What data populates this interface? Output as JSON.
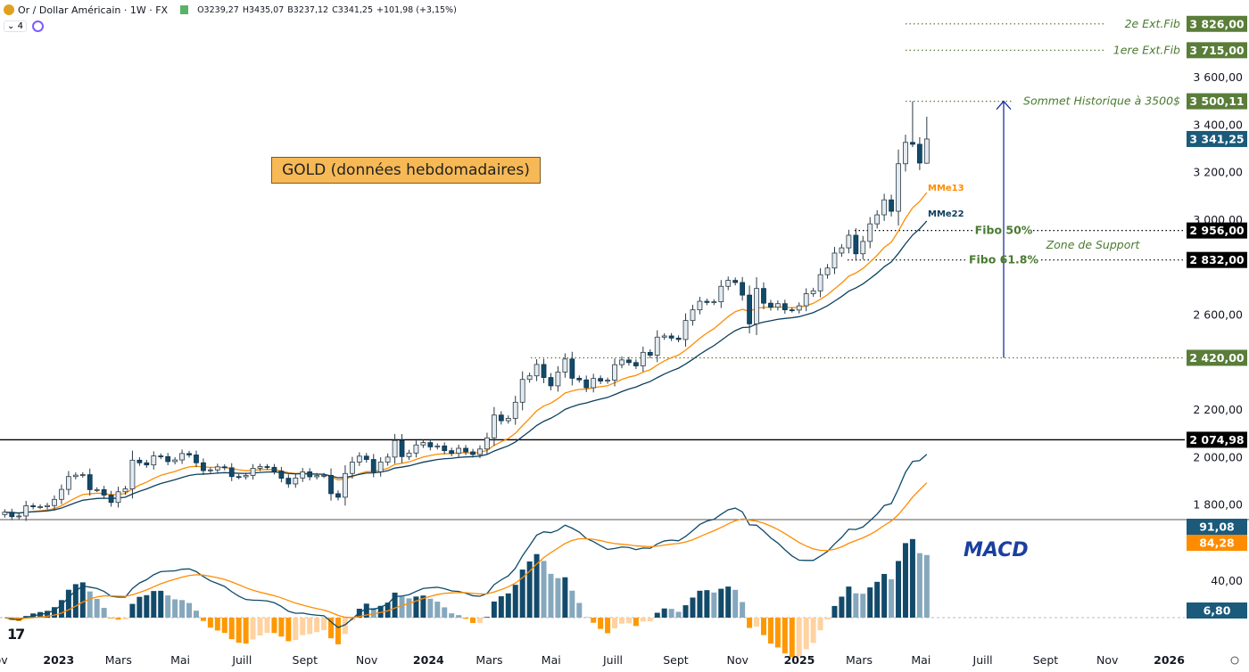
{
  "header": {
    "symbol": "Or / Dollar Américain · 1W · FX",
    "open": "O3239,27",
    "high": "H3435,07",
    "low": "B3237,12",
    "close": "C3341,25",
    "change": "+101,98 (+3,15%)",
    "collapse_count": "4"
  },
  "title_box": "GOLD (données hebdomadaires)",
  "macd_label": "MACD",
  "chart_data": {
    "type": "candlestick",
    "interval": "1W",
    "first_week": "2022-11-07",
    "close": [
      1770,
      1751,
      1754,
      1797,
      1793,
      1793,
      1798,
      1824,
      1866,
      1920,
      1926,
      1928,
      1865,
      1865,
      1842,
      1811,
      1856,
      1868,
      1989,
      1978,
      1969,
      2007,
      2004,
      1983,
      1990,
      2017,
      2011,
      1978,
      1945,
      1948,
      1961,
      1957,
      1920,
      1919,
      1925,
      1955,
      1962,
      1959,
      1943,
      1913,
      1889,
      1914,
      1940,
      1919,
      1924,
      1925,
      1848,
      1833,
      1933,
      1981,
      2006,
      1992,
      1940,
      1981,
      2002,
      2072,
      2004,
      2019,
      2053,
      2063,
      2045,
      2049,
      2029,
      2018,
      2039,
      2024,
      2013,
      2036,
      2083,
      2179,
      2155,
      2165,
      2233,
      2329,
      2344,
      2392,
      2337,
      2302,
      2360,
      2415,
      2334,
      2327,
      2294,
      2333,
      2322,
      2326,
      2391,
      2411,
      2400,
      2386,
      2443,
      2431,
      2507,
      2512,
      2503,
      2497,
      2577,
      2622,
      2658,
      2653,
      2656,
      2721,
      2746,
      2737,
      2684,
      2563,
      2712,
      2650,
      2633,
      2648,
      2622,
      2621,
      2639,
      2690,
      2702,
      2770,
      2798,
      2861,
      2883,
      2936,
      2858,
      2910,
      2984,
      3022,
      3085,
      3037,
      3237,
      3327,
      3319,
      3240,
      3341
    ],
    "last_candle": {
      "open": 3239.27,
      "high": 3435.07,
      "low": 3237.12,
      "close": 3341.25
    },
    "price_axis": {
      "ticks": [
        "3 600,00",
        "3 400,00",
        "3 200,00",
        "3 000,00",
        "2 600,00",
        "2 200,00",
        "2 000,00",
        "1 800,00"
      ],
      "tick_values": [
        3600,
        3400,
        3200,
        3000,
        2600,
        2200,
        2000,
        1800
      ]
    },
    "time_axis": [
      {
        "label": "Nov",
        "date": "2022-11-01"
      },
      {
        "label": "2023",
        "date": "2023-01-01",
        "bold": true
      },
      {
        "label": "Mars",
        "date": "2023-03-01"
      },
      {
        "label": "Mai",
        "date": "2023-05-01"
      },
      {
        "label": "Juill",
        "date": "2023-07-01"
      },
      {
        "label": "Sept",
        "date": "2023-09-01"
      },
      {
        "label": "Nov",
        "date": "2023-11-01"
      },
      {
        "label": "2024",
        "date": "2024-01-01",
        "bold": true
      },
      {
        "label": "Mars",
        "date": "2024-03-01"
      },
      {
        "label": "Mai",
        "date": "2024-05-01"
      },
      {
        "label": "Juill",
        "date": "2024-07-01"
      },
      {
        "label": "Sept",
        "date": "2024-09-01"
      },
      {
        "label": "Nov",
        "date": "2024-11-01"
      },
      {
        "label": "2025",
        "date": "2025-01-01",
        "bold": true
      },
      {
        "label": "Mars",
        "date": "2025-03-01"
      },
      {
        "label": "Mai",
        "date": "2025-05-01"
      },
      {
        "label": "Juill",
        "date": "2025-07-01"
      },
      {
        "label": "Sept",
        "date": "2025-09-01"
      },
      {
        "label": "Nov",
        "date": "2025-11-01"
      },
      {
        "label": "2026",
        "date": "2026-01-01",
        "bold": true
      }
    ],
    "moving_averages": [
      {
        "name": "MMe13",
        "period": 13,
        "color": "#ff8c00"
      },
      {
        "name": "MMe22",
        "period": 22,
        "color": "#0d3f5e"
      }
    ],
    "levels": [
      {
        "label": "2e Ext.Fib",
        "value": 3826.0,
        "badge": "3 826,00",
        "color": "#5a7d3a"
      },
      {
        "label": "1ere Ext.Fib",
        "value": 3715.0,
        "badge": "3 715,00",
        "color": "#5a7d3a"
      },
      {
        "label": "Sommet Historique à 3500$",
        "value": 3500.11,
        "badge": "3 500,11",
        "color": "#5a7d3a"
      },
      {
        "label": "",
        "value": 3341.25,
        "badge": "3 341,25",
        "color": "#1b5a7a"
      },
      {
        "label": "Fibo 50%",
        "value": 2956.0,
        "badge": "2 956,00",
        "color": "#000000"
      },
      {
        "label": "Fibo 61.8%",
        "value": 2832.0,
        "badge": "2 832,00",
        "color": "#000000"
      },
      {
        "label": "",
        "value": 2420.0,
        "badge": "2 420,00",
        "color": "#5a7d3a"
      },
      {
        "label": "",
        "value": 2074.98,
        "badge": "2 074,98",
        "color": "#000000"
      }
    ],
    "zone_label": "Zone de Support",
    "macd": {
      "fast": 12,
      "slow": 26,
      "signal": 9,
      "macd_value": "91,08",
      "signal_value": "84,28",
      "hist_value": "6,80",
      "tick": "40,00",
      "tick_value": 40,
      "macd_color": "#0d4a6b",
      "signal_color": "#ff8c00"
    }
  }
}
